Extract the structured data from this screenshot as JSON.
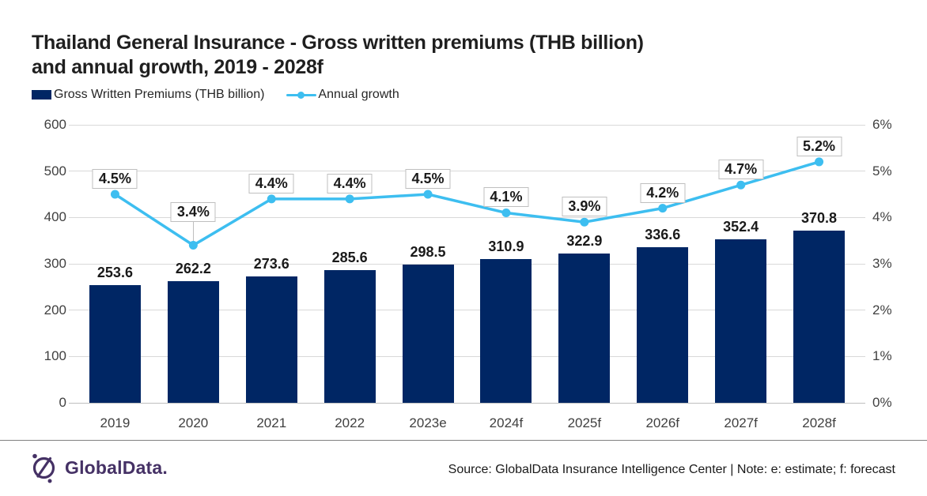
{
  "title": {
    "line1": "Thailand General Insurance - Gross written premiums (THB billion)",
    "line2": "and annual growth, 2019 - 2028f"
  },
  "legend": {
    "bars": "Gross Written Premiums (THB billion)",
    "line": "Annual growth"
  },
  "chart_data": {
    "type": "bar",
    "subtype": "bar-with-line-overlay",
    "categories": [
      "2019",
      "2020",
      "2021",
      "2022",
      "2023e",
      "2024f",
      "2025f",
      "2026f",
      "2027f",
      "2028f"
    ],
    "series": [
      {
        "name": "Gross Written Premiums (THB billion)",
        "type": "bar",
        "axis": "left",
        "values": [
          253.6,
          262.2,
          273.6,
          285.6,
          298.5,
          310.9,
          322.9,
          336.6,
          352.4,
          370.8
        ],
        "labels": [
          "253.6",
          "262.2",
          "273.6",
          "285.6",
          "298.5",
          "310.9",
          "322.9",
          "336.6",
          "352.4",
          "370.8"
        ]
      },
      {
        "name": "Annual growth",
        "type": "line",
        "axis": "right",
        "values": [
          4.5,
          3.4,
          4.4,
          4.4,
          4.5,
          4.1,
          3.9,
          4.2,
          4.7,
          5.2
        ],
        "labels": [
          "4.5%",
          "3.4%",
          "4.4%",
          "4.4%",
          "4.5%",
          "4.1%",
          "3.9%",
          "4.2%",
          "4.7%",
          "5.2%"
        ]
      }
    ],
    "y_left": {
      "ticks": [
        "600",
        "500",
        "400",
        "300",
        "200",
        "100",
        "0"
      ],
      "min": 0,
      "max": 600
    },
    "y_right": {
      "ticks": [
        "6%",
        "5%",
        "4%",
        "3%",
        "2%",
        "1%",
        "0%"
      ],
      "min": 0,
      "max": 6
    },
    "grid": true,
    "legend_position": "top-left"
  },
  "footer": {
    "logo_text": "GlobalData.",
    "source": "Source: GlobalData Insurance Intelligence Center | Note: e: estimate; f: forecast"
  },
  "colors": {
    "bar": "#002664",
    "line": "#3DBEF0",
    "grid": "#D9D9D9",
    "baseline": "#BFBFBF",
    "axis_text": "#404040",
    "title": "#1F1F1F",
    "text": "#1A1A1A",
    "label_box_border": "#BFBFBF",
    "divider": "#808080",
    "logo_purple": "#453165"
  }
}
